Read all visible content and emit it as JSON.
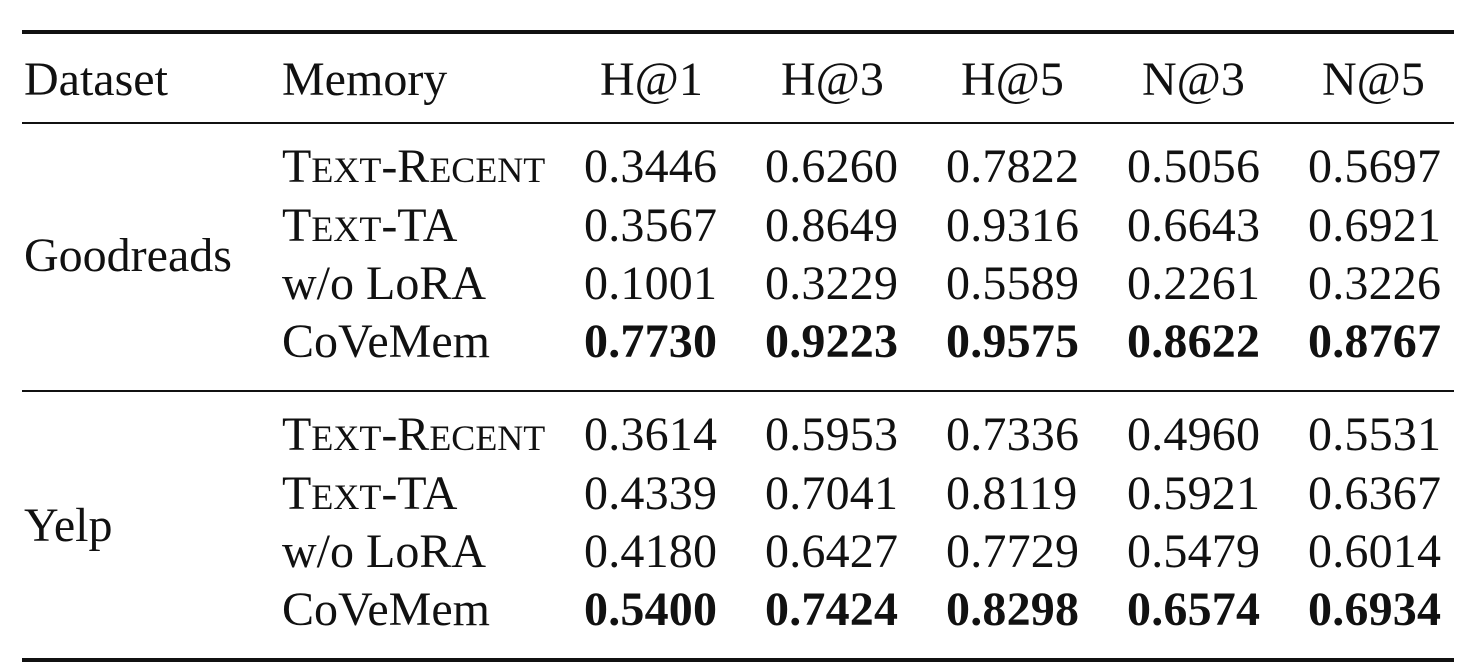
{
  "table": {
    "headers": [
      "Dataset",
      "Memory",
      "H@1",
      "H@3",
      "H@5",
      "N@3",
      "N@5"
    ],
    "groups": [
      {
        "dataset": "Goodreads",
        "rows": [
          {
            "memory": "Text-Recent",
            "values": [
              "0.3446",
              "0.6260",
              "0.7822",
              "0.5056",
              "0.5697"
            ],
            "bold": false
          },
          {
            "memory": "Text-TA",
            "values": [
              "0.3567",
              "0.8649",
              "0.9316",
              "0.6643",
              "0.6921"
            ],
            "bold": false
          },
          {
            "memory": "w/o LoRA",
            "values": [
              "0.1001",
              "0.3229",
              "0.5589",
              "0.2261",
              "0.3226"
            ],
            "bold": false
          },
          {
            "memory": "CoVeMem",
            "values": [
              "0.7730",
              "0.9223",
              "0.9575",
              "0.8622",
              "0.8767"
            ],
            "bold": true
          }
        ]
      },
      {
        "dataset": "Yelp",
        "rows": [
          {
            "memory": "Text-Recent",
            "values": [
              "0.3614",
              "0.5953",
              "0.7336",
              "0.4960",
              "0.5531"
            ],
            "bold": false
          },
          {
            "memory": "Text-TA",
            "values": [
              "0.4339",
              "0.7041",
              "0.8119",
              "0.5921",
              "0.6367"
            ],
            "bold": false
          },
          {
            "memory": "w/o LoRA",
            "values": [
              "0.4180",
              "0.6427",
              "0.7729",
              "0.5479",
              "0.6014"
            ],
            "bold": false
          },
          {
            "memory": "CoVeMem",
            "values": [
              "0.5400",
              "0.7424",
              "0.8298",
              "0.6574",
              "0.6934"
            ],
            "bold": true
          }
        ]
      }
    ]
  }
}
